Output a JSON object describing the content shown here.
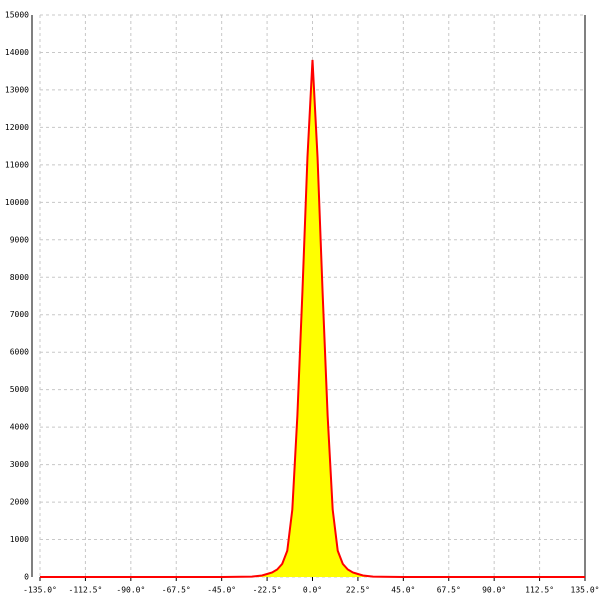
{
  "chart_data": {
    "type": "area",
    "x": [
      -135,
      -45,
      -30,
      -25,
      -22.5,
      -20,
      -17.5,
      -15,
      -12.5,
      -10,
      -7.5,
      -5,
      -2.5,
      0,
      2.5,
      5,
      7.5,
      10,
      12.5,
      15,
      17.5,
      20,
      22.5,
      25,
      30,
      45,
      135
    ],
    "series": [
      {
        "color": "#ff0000",
        "fill": "#ffff00",
        "values": [
          0,
          0,
          10,
          40,
          80,
          120,
          200,
          350,
          700,
          1800,
          4300,
          7600,
          11200,
          13800,
          11200,
          7600,
          4300,
          1800,
          700,
          350,
          200,
          120,
          80,
          40,
          10,
          0,
          0
        ]
      }
    ],
    "xlim": [
      -135,
      135
    ],
    "xticks": [
      {
        "value": -135,
        "label": "-135.0°"
      },
      {
        "value": -112.5,
        "label": "-112.5°"
      },
      {
        "value": -90,
        "label": "-90.0°"
      },
      {
        "value": -67.5,
        "label": "-67.5°"
      },
      {
        "value": -45,
        "label": "-45.0°"
      },
      {
        "value": -22.5,
        "label": "-22.5°"
      },
      {
        "value": 0,
        "label": "0.0°"
      },
      {
        "value": 22.5,
        "label": "22.5°"
      },
      {
        "value": 45,
        "label": "45.0°"
      },
      {
        "value": 67.5,
        "label": "67.5°"
      },
      {
        "value": 90,
        "label": "90.0°"
      },
      {
        "value": 112.5,
        "label": "112.5°"
      },
      {
        "value": 135,
        "label": "135.0°"
      }
    ],
    "ylim": [
      0,
      15000
    ],
    "yticks": [
      0,
      1000,
      2000,
      3000,
      4000,
      5000,
      6000,
      7000,
      8000,
      9000,
      10000,
      11000,
      12000,
      13000,
      14000,
      15000
    ],
    "grid": true
  }
}
